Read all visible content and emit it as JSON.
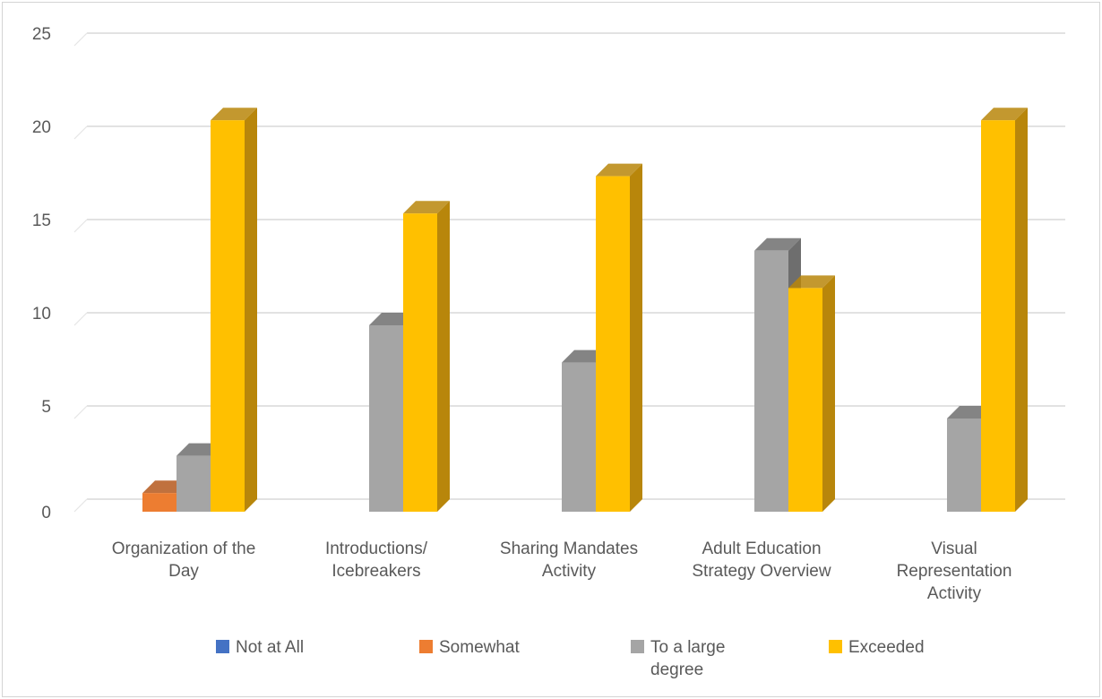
{
  "chart_data": {
    "type": "bar",
    "title": "",
    "xlabel": "",
    "ylabel": "",
    "ylim": [
      0,
      25
    ],
    "yticks": [
      0,
      5,
      10,
      15,
      20,
      25
    ],
    "grid": true,
    "legend_position": "bottom",
    "categories": [
      [
        "Organization of the",
        "Day"
      ],
      [
        "Introductions/",
        "Icebreakers"
      ],
      [
        "Sharing Mandates",
        "Activity"
      ],
      [
        "Adult Education",
        "Strategy Overview"
      ],
      [
        "Visual",
        "Representation",
        "Activity"
      ]
    ],
    "series": [
      {
        "name": [
          "Not at All"
        ],
        "color": "#4472C4",
        "side_color": "#2F5597",
        "values": [
          0,
          0,
          0,
          0,
          0
        ]
      },
      {
        "name": [
          "Somewhat"
        ],
        "color": "#ED7D31",
        "side_color": "#B5581C",
        "values": [
          1,
          0,
          0,
          0,
          0
        ]
      },
      {
        "name": [
          "To a large",
          "degree"
        ],
        "color": "#A5A5A5",
        "side_color": "#6E6E6E",
        "values": [
          3,
          10,
          8,
          14,
          5
        ]
      },
      {
        "name": [
          "Exceeded"
        ],
        "color": "#FFC000",
        "side_color": "#B8860B",
        "values": [
          21,
          16,
          18,
          12,
          21
        ]
      }
    ]
  }
}
